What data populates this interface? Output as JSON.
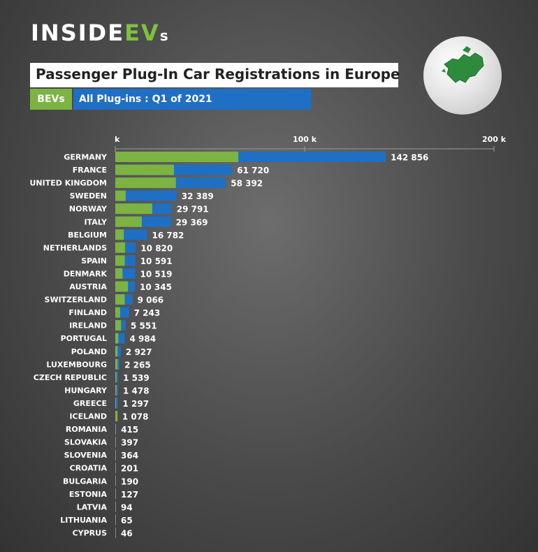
{
  "header": {
    "logo": {
      "text_main": "INSIDE",
      "text_accent": "EV",
      "text_suffix": "s"
    },
    "title": "Passenger Plug-In Car Registrations in Europe",
    "tag_bev": "BEVs",
    "tag_all": "All Plug-ins : Q1 of 2021"
  },
  "colors": {
    "bev": "#7cb342",
    "all": "#1f6fc4",
    "logo_accent": "#7fbf3f"
  },
  "globe": {
    "icon": "europe-globe-icon"
  },
  "chart_data": {
    "type": "bar",
    "orientation": "horizontal",
    "stacked_overlay": true,
    "title": "Passenger Plug-In Car Registrations in Europe",
    "subtitle": "All Plug-ins : Q1 of 2021",
    "xlim": [
      0,
      200000
    ],
    "x_ticks": [
      {
        "value": 0,
        "label": "k"
      },
      {
        "value": 100000,
        "label": "100 k"
      },
      {
        "value": 200000,
        "label": "200 k"
      }
    ],
    "grid": false,
    "legend": "top-left",
    "categories": [
      "GERMANY",
      "FRANCE",
      "UNITED KINGDOM",
      "SWEDEN",
      "NORWAY",
      "ITALY",
      "BELGIUM",
      "NETHERLANDS",
      "SPAIN",
      "DENMARK",
      "AUSTRIA",
      "SWITZERLAND",
      "FINLAND",
      "IRELAND",
      "PORTUGAL",
      "POLAND",
      "LUXEMBOURG",
      "CZECH REPUBLIC",
      "HUNGARY",
      "GREECE",
      "ICELAND",
      "ROMANIA",
      "SLOVAKIA",
      "SLOVENIA",
      "CROATIA",
      "BULGARIA",
      "ESTONIA",
      "LATVIA",
      "LITHUANIA",
      "CYPRUS"
    ],
    "series": [
      {
        "name": "All Plug-ins",
        "values": [
          142856,
          61720,
          58392,
          32389,
          29791,
          29369,
          16782,
          10820,
          10591,
          10519,
          10345,
          9066,
          7243,
          5551,
          4984,
          2927,
          2265,
          1539,
          1478,
          1297,
          1078,
          415,
          397,
          364,
          201,
          190,
          127,
          94,
          65,
          46
        ]
      },
      {
        "name": "BEVs",
        "values": [
          65000,
          31000,
          32000,
          5500,
          19500,
          14000,
          4500,
          5200,
          5000,
          3800,
          6700,
          5000,
          2500,
          3000,
          1600,
          1200,
          1200,
          600,
          600,
          400,
          1200,
          250,
          250,
          200,
          120,
          100,
          80,
          60,
          40,
          30
        ]
      }
    ],
    "value_labels": [
      "142 856",
      "61 720",
      "58 392",
      "32 389",
      "29 791",
      "29 369",
      "16 782",
      "10 820",
      "10 591",
      "10 519",
      "10 345",
      "9 066",
      "7 243",
      "5 551",
      "4 984",
      "2 927",
      "2 265",
      "1 539",
      "1 478",
      "1 297",
      "1 078",
      "415",
      "397",
      "364",
      "201",
      "190",
      "127",
      "94",
      "65",
      "46"
    ]
  }
}
